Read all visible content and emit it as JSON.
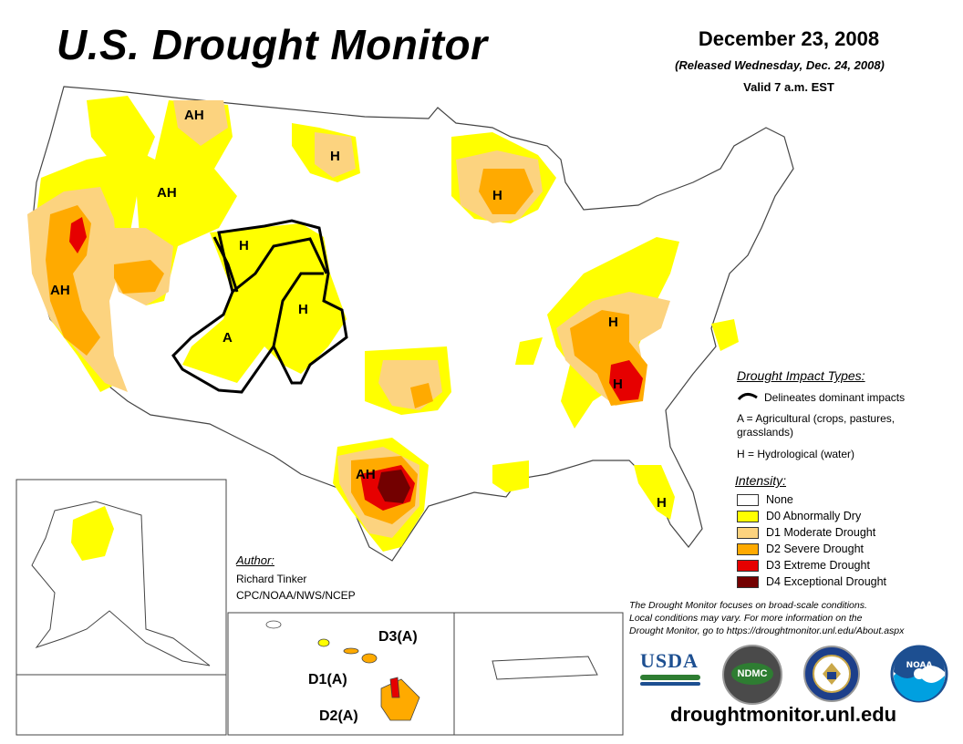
{
  "header": {
    "title": "U.S. Drought Monitor",
    "date": "December 23, 2008",
    "released": "(Released Wednesday, Dec. 24, 2008)",
    "valid": "Valid 7 a.m. EST"
  },
  "map_labels": {
    "ah_montana": "AH",
    "ah_idaho": "AH",
    "ah_california": "AH",
    "ah_texas": "AH",
    "h_dakota": "H",
    "h_wisconsin": "H",
    "h_wyoming": "H",
    "h_colorado": "H",
    "h_kentucky": "H",
    "h_georgia": "H",
    "h_florida": "H",
    "a_utah": "A",
    "hi_d3": "D3(A)",
    "hi_d1": "D1(A)",
    "hi_d2": "D2(A)"
  },
  "impact_legend": {
    "title": "Drought Impact Types:",
    "delineates": "Delineates dominant impacts",
    "agricultural_line1": "A = Agricultural (crops, pastures,",
    "agricultural_line2": "grasslands)",
    "hydrological": "H = Hydrological (water)"
  },
  "intensity_legend": {
    "title": "Intensity:",
    "items": [
      {
        "label": "None",
        "color": "#ffffff"
      },
      {
        "label": "D0 Abnormally Dry",
        "color": "#ffff00"
      },
      {
        "label": "D1 Moderate Drought",
        "color": "#fcd37f"
      },
      {
        "label": "D2 Severe Drought",
        "color": "#ffaa00"
      },
      {
        "label": "D3 Extreme Drought",
        "color": "#e60000"
      },
      {
        "label": "D4 Exceptional Drought",
        "color": "#730000"
      }
    ]
  },
  "author": {
    "heading": "Author:",
    "name": "Richard Tinker",
    "org": "CPC/NOAA/NWS/NCEP"
  },
  "disclaimer": {
    "line1": "The Drought Monitor focuses on broad-scale conditions.",
    "line2": "Local conditions may vary. For more information on the",
    "line3": "Drought Monitor, go to https://droughtmonitor.unl.edu/About.aspx"
  },
  "logos": {
    "usda": "USDA",
    "ndmc": "NDMC",
    "noaa": "NOAA"
  },
  "website": "droughtmonitor.unl.edu"
}
